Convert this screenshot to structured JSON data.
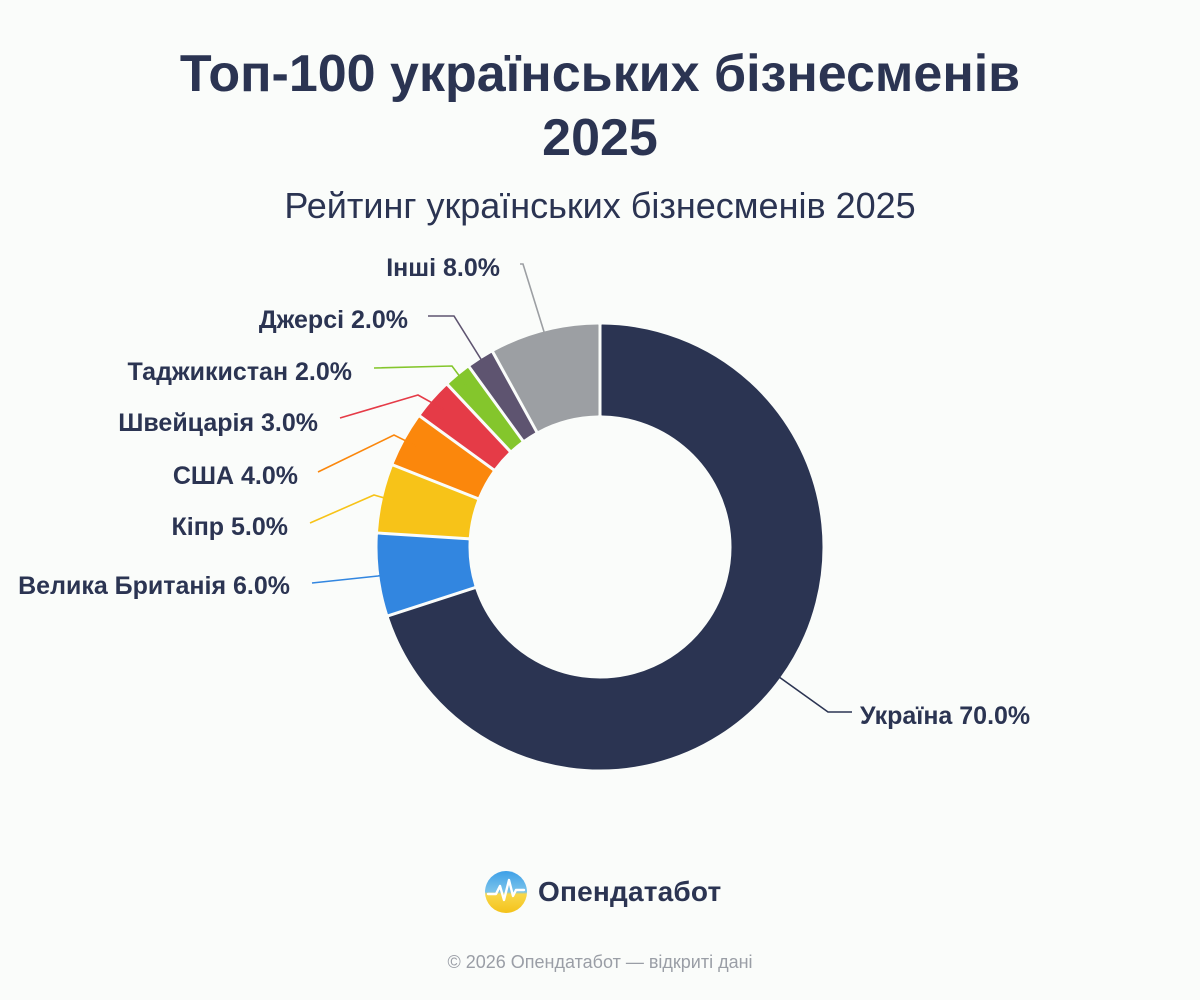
{
  "header": {
    "title_line1": "Топ-100 українських бізнесменів",
    "title_line2": "2025",
    "subtitle": "Рейтинг українських бізнесменів 2025"
  },
  "chart_data": {
    "type": "pie",
    "variant": "donut",
    "title": "Топ-100 українських бізнесменів 2025",
    "subtitle": "Рейтинг українських бізнесменів 2025",
    "unit": "%",
    "slices": [
      {
        "label": "Україна",
        "value": 70.0,
        "display": "Україна 70.0%",
        "color": "#2b3452"
      },
      {
        "label": "Велика Британія",
        "value": 6.0,
        "display": "Велика Британія 6.0%",
        "color": "#3286e0"
      },
      {
        "label": "Кіпр",
        "value": 5.0,
        "display": "Кіпр 5.0%",
        "color": "#f7c318"
      },
      {
        "label": "США",
        "value": 4.0,
        "display": "США 4.0%",
        "color": "#fb870c"
      },
      {
        "label": "Швейцарія",
        "value": 3.0,
        "display": "Швейцарія 3.0%",
        "color": "#e53b47"
      },
      {
        "label": "Таджикистан",
        "value": 2.0,
        "display": "Таджикистан 2.0%",
        "color": "#84c62c"
      },
      {
        "label": "Джерсі",
        "value": 2.0,
        "display": "Джерсі 2.0%",
        "color": "#5e5470"
      },
      {
        "label": "Інші",
        "value": 8.0,
        "display": "Інші 8.0%",
        "color": "#9c9fa3"
      }
    ]
  },
  "brand": {
    "name": "Опендатабот",
    "logo_icon": "opendatabot-logo-icon"
  },
  "footer": {
    "text": "© 2026 Опендатабот — відкриті дані"
  }
}
